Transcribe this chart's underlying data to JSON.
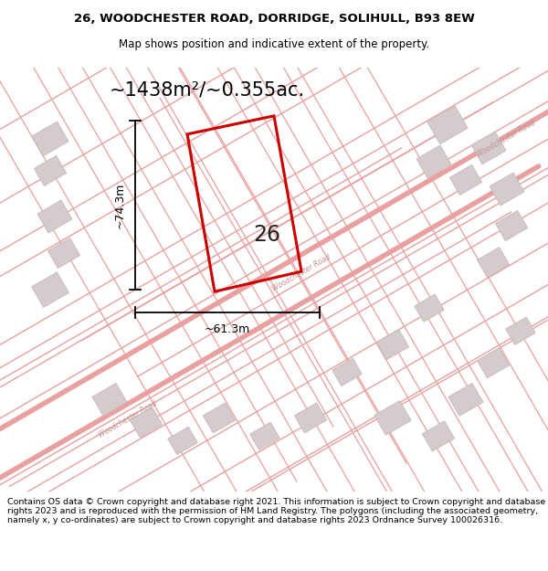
{
  "title_line1": "26, WOODCHESTER ROAD, DORRIDGE, SOLIHULL, B93 8EW",
  "title_line2": "Map shows position and indicative extent of the property.",
  "area_text": "~1438m²/~0.355ac.",
  "property_number": "26",
  "width_label": "~61.3m",
  "height_label": "~74.3m",
  "footer_text": "Contains OS data © Crown copyright and database right 2021. This information is subject to Crown copyright and database rights 2023 and is reproduced with the permission of HM Land Registry. The polygons (including the associated geometry, namely x, y co-ordinates) are subject to Crown copyright and database rights 2023 Ordnance Survey 100026316.",
  "bg_color": "#ffffff",
  "map_bg_color": "#f7f0f0",
  "road_line_color": "#e8a0a0",
  "road_fill_color": "#f0e0e0",
  "building_face_color": "#d4cccc",
  "building_edge_color": "#c8b8b8",
  "plot_color": "#cc0000",
  "dim_color": "#000000",
  "text_color": "#000000",
  "road_text_color": "#c09090",
  "title_fontsize": 9.5,
  "subtitle_fontsize": 8.5,
  "area_fontsize": 15,
  "num_fontsize": 17,
  "dim_fontsize": 9,
  "footer_fontsize": 6.8
}
